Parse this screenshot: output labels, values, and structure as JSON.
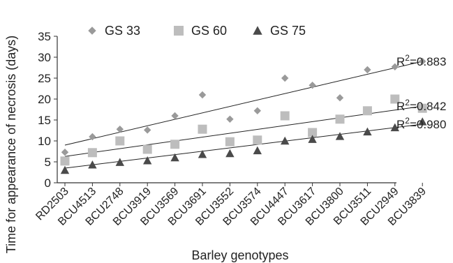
{
  "chart_data": {
    "type": "scatter",
    "xlabel": "Barley genotypes",
    "ylabel": "Time for appearance of necrosis (days)",
    "categories": [
      "RD2503",
      "BCU4513",
      "BCU2748",
      "BCU3919",
      "BCU3569",
      "BCU3691",
      "BCU3552",
      "BCU3574",
      "BCU4447",
      "BCU3617",
      "BCU3800",
      "BCU3511",
      "BCU2949",
      "BCU3839"
    ],
    "ylim": [
      0,
      35
    ],
    "yticks": [
      0,
      5,
      10,
      15,
      20,
      25,
      30,
      35
    ],
    "grid": false,
    "legend_position": "top",
    "series": [
      {
        "name": "GS 33",
        "marker": "diamond",
        "color": "#9a9a9a",
        "values": [
          7.3,
          11.0,
          12.8,
          12.6,
          16.0,
          21.0,
          15.2,
          17.2,
          25.0,
          23.3,
          20.3,
          27.0,
          27.7,
          29.0
        ],
        "trend": {
          "start": 9.0,
          "end": 29.0,
          "r2_label": "R",
          "r2_sup": "2",
          "r2_value": "=0.883"
        }
      },
      {
        "name": "GS 60",
        "marker": "square",
        "color": "#bdbdbd",
        "values": [
          5.2,
          7.2,
          10.0,
          8.0,
          9.2,
          12.8,
          9.8,
          10.2,
          16.0,
          12.0,
          15.2,
          17.2,
          20.0,
          17.8
        ],
        "trend": {
          "start": 6.3,
          "end": 18.3,
          "r2_label": "R",
          "r2_sup": "2",
          "r2_value": "=0.842"
        }
      },
      {
        "name": "GS 75",
        "marker": "triangle",
        "color": "#4a4a4a",
        "values": [
          3.0,
          4.3,
          4.9,
          5.3,
          6.0,
          6.8,
          7.0,
          7.7,
          10.0,
          10.4,
          11.1,
          12.2,
          13.2,
          14.6
        ],
        "trend": {
          "start": 3.5,
          "end": 14.0,
          "r2_label": "R",
          "r2_sup": "2",
          "r2_value": "=0.980"
        }
      }
    ]
  }
}
